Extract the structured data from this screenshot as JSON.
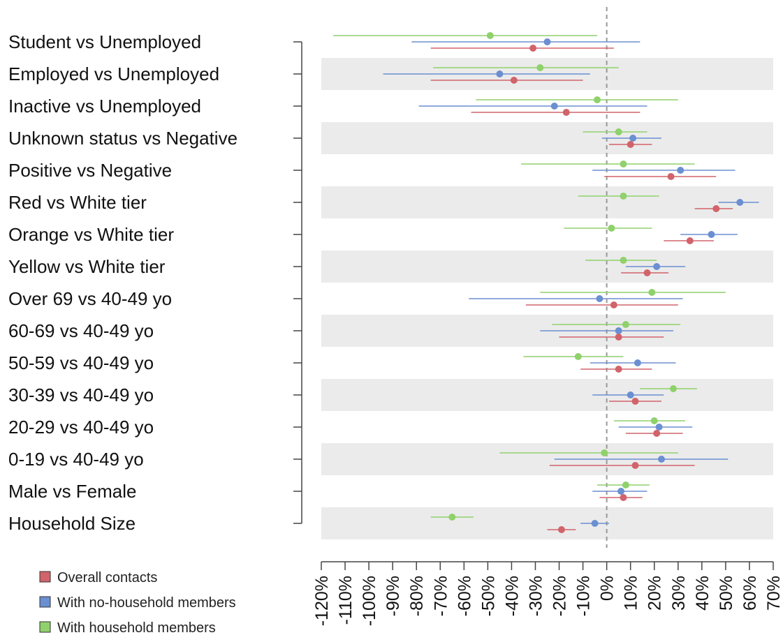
{
  "chart_data": {
    "type": "forest",
    "title": "",
    "xlabel": "",
    "ylabel": "",
    "xlim": [
      -120,
      70
    ],
    "x_ticks": [
      -120,
      -110,
      -100,
      -90,
      -80,
      -70,
      -60,
      -50,
      -40,
      -30,
      -20,
      -10,
      0,
      10,
      20,
      30,
      40,
      50,
      60,
      70
    ],
    "x_tick_labels": [
      "-120%",
      "-110%",
      "-100%",
      "-90%",
      "-80%",
      "-70%",
      "-60%",
      "-50%",
      "-40%",
      "-30%",
      "-20%",
      "-10%",
      "0%",
      "10%",
      "20%",
      "30%",
      "40%",
      "50%",
      "60%",
      "70%"
    ],
    "reference_line": 0,
    "legend_position": "bottom-left",
    "categories": [
      "Student vs Unemployed",
      "Employed vs Unemployed",
      "Inactive vs Unemployed",
      "Unknown status vs Negative",
      "Positive vs Negative",
      "Red vs White tier",
      "Orange vs White tier",
      "Yellow vs White tier",
      "Over 69 vs 40-49 yo",
      "60-69 vs 40-49 yo",
      "50-59 vs 40-49 yo",
      "30-39 vs 40-49 yo",
      "20-29 vs 40-49 yo",
      "0-19 vs 40-49 yo",
      "Male vs Female",
      "Household Size"
    ],
    "series": [
      {
        "name": "With household members",
        "color": "#8fd16b",
        "estimate": [
          -49,
          -28,
          -4,
          5,
          7,
          7,
          2,
          7,
          19,
          8,
          -12,
          28,
          20,
          -1,
          8,
          -65
        ],
        "lower": [
          -115,
          -73,
          -55,
          -10,
          -36,
          -12,
          -18,
          -9,
          -28,
          -23,
          -35,
          14,
          3,
          -45,
          -4,
          -74
        ],
        "upper": [
          -4,
          5,
          30,
          17,
          37,
          22,
          19,
          21,
          50,
          31,
          7,
          38,
          33,
          30,
          18,
          -56
        ]
      },
      {
        "name": "With no-household members",
        "color": "#6b8fd1",
        "estimate": [
          -25,
          -45,
          -22,
          11,
          31,
          56,
          44,
          21,
          -3,
          5,
          13,
          10,
          22,
          23,
          6,
          -5
        ],
        "lower": [
          -82,
          -94,
          -79,
          -2,
          -6,
          47,
          31,
          8,
          -58,
          -28,
          -7,
          -6,
          5,
          -22,
          -6,
          -11
        ],
        "upper": [
          14,
          -7,
          17,
          23,
          54,
          64,
          55,
          33,
          32,
          28,
          29,
          24,
          36,
          51,
          17,
          1
        ]
      },
      {
        "name": "Overall contacts",
        "color": "#d1636b",
        "estimate": [
          -31,
          -39,
          -17,
          10,
          27,
          46,
          35,
          17,
          3,
          5,
          5,
          12,
          21,
          12,
          7,
          -19
        ],
        "lower": [
          -74,
          -74,
          -57,
          1,
          -1,
          37,
          24,
          6,
          -34,
          -20,
          -11,
          1,
          8,
          -24,
          -3,
          -25
        ],
        "upper": [
          3,
          -10,
          14,
          19,
          46,
          53,
          45,
          26,
          30,
          24,
          19,
          23,
          32,
          37,
          15,
          -13
        ]
      }
    ]
  },
  "legend": {
    "items": [
      {
        "label": "Overall contacts",
        "color": "#d1636b"
      },
      {
        "label": "With no-household members",
        "color": "#6b8fd1"
      },
      {
        "label": "With household members",
        "color": "#8fd16b"
      }
    ]
  }
}
